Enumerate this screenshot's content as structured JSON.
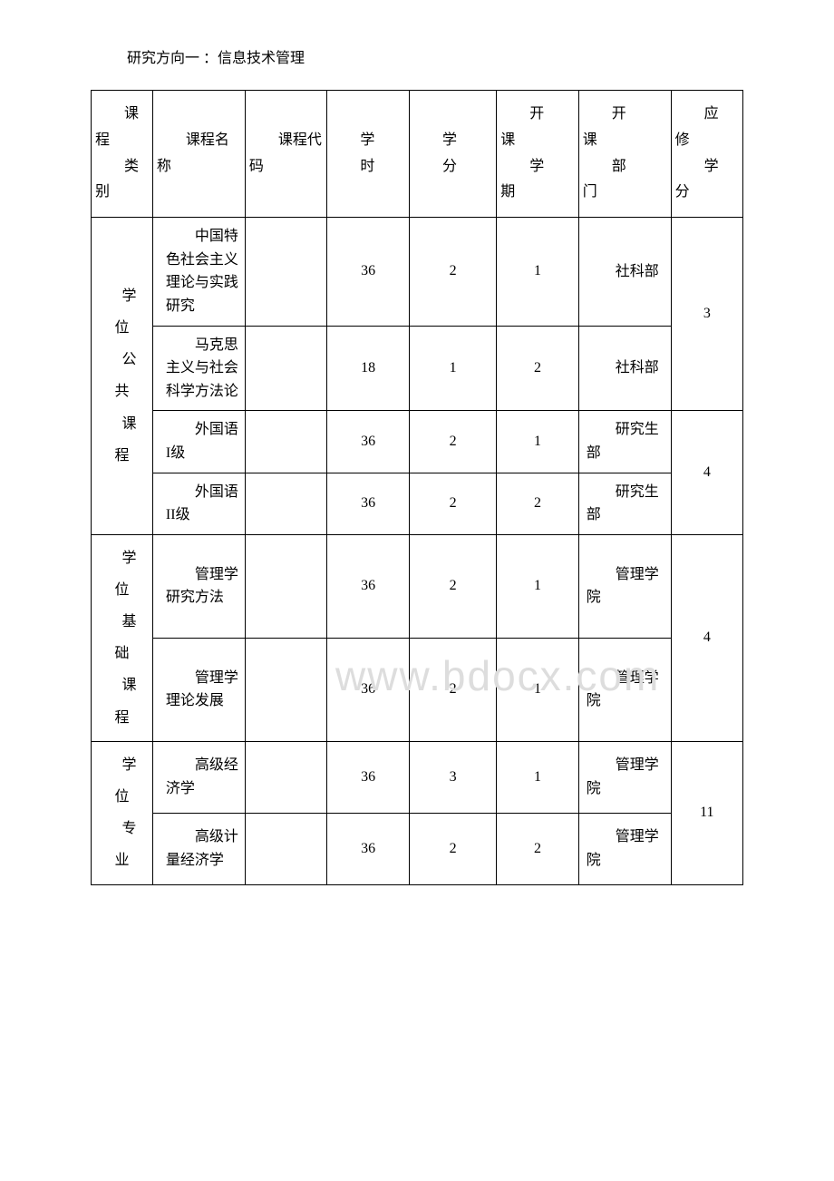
{
  "title": "研究方向一 ：信息技术管理",
  "watermark": "www.bdocx.com",
  "headers": {
    "category": "课程类别",
    "course_name": "课程名称",
    "course_code": "课程代码",
    "hours": "学时",
    "credits": "学分",
    "semester": "开课学期",
    "department": "开课部门",
    "required_credits": "应修学分"
  },
  "sections": [
    {
      "category": "学位公共课程",
      "groups": [
        {
          "required_credits": "3",
          "rows": [
            {
              "course_name": "中国特色社会主义理论与实践研究",
              "course_code": "",
              "hours": "36",
              "credits": "2",
              "semester": "1",
              "department": "社科部"
            },
            {
              "course_name": "马克思主义与社会科学方法论",
              "course_code": "",
              "hours": "18",
              "credits": "1",
              "semester": "2",
              "department": "社科部"
            }
          ]
        },
        {
          "required_credits": "4",
          "rows": [
            {
              "course_name": "外国语I级",
              "course_code": "",
              "hours": "36",
              "credits": "2",
              "semester": "1",
              "department": "研究生部"
            },
            {
              "course_name": "外国语II级",
              "course_code": "",
              "hours": "36",
              "credits": "2",
              "semester": "2",
              "department": "研究生部"
            }
          ]
        }
      ]
    },
    {
      "category": "学位基础课程",
      "groups": [
        {
          "required_credits": "4",
          "rows": [
            {
              "course_name": "管理学研究方法",
              "course_code": "",
              "hours": "36",
              "credits": "2",
              "semester": "1",
              "department": "管理学院"
            },
            {
              "course_name": "管理学理论发展",
              "course_code": "",
              "hours": "36",
              "credits": "2",
              "semester": "1",
              "department": "管理学院"
            }
          ]
        }
      ]
    },
    {
      "category": "学位专业",
      "groups": [
        {
          "required_credits": "11",
          "rows": [
            {
              "course_name": "高级经济学",
              "course_code": "",
              "hours": "36",
              "credits": "3",
              "semester": "1",
              "department": "管理学院"
            },
            {
              "course_name": "高级计量经济学",
              "course_code": "",
              "hours": "36",
              "credits": "2",
              "semester": "2",
              "department": "管理学院"
            }
          ]
        }
      ]
    }
  ],
  "styling": {
    "background_color": "#ffffff",
    "border_color": "#000000",
    "text_color": "#000000",
    "watermark_color": "#dddddd",
    "font_family": "SimSun",
    "base_font_size": 16
  }
}
